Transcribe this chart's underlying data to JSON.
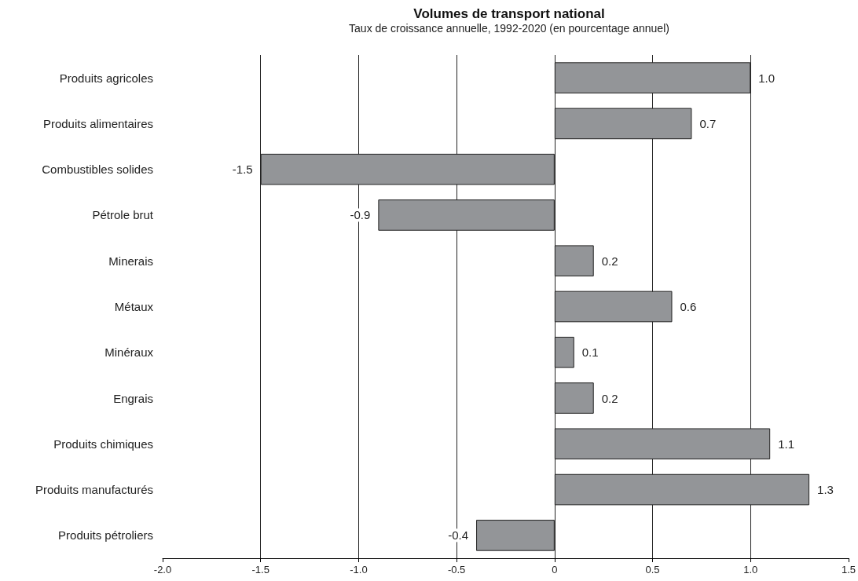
{
  "chart_data": {
    "type": "bar",
    "orientation": "horizontal",
    "title": "Volumes de transport national",
    "subtitle": "Taux de croissance annuelle, 1992-2020 (en pourcentage annuel)",
    "categories": [
      "Produits agricoles",
      "Produits alimentaires",
      "Combustibles solides",
      "Pétrole brut",
      "Minerais",
      "Métaux",
      "Minéraux",
      "Engrais",
      "Produits chimiques",
      "Produits manufacturés",
      "Produits pétroliers"
    ],
    "values": [
      1.0,
      0.7,
      -1.5,
      -0.9,
      0.2,
      0.6,
      0.1,
      0.2,
      1.1,
      1.3,
      -0.4
    ],
    "value_labels": [
      "1.0",
      "0.7",
      "-1.5",
      "-0.9",
      "0.2",
      "0.6",
      "0.1",
      "0.2",
      "1.1",
      "1.3",
      "-0.4"
    ],
    "color": "#939598",
    "grid": "x",
    "xlim": [
      -2,
      1.5
    ],
    "xticks": [
      {
        "value": -2,
        "label": "-2.0"
      },
      {
        "value": -1.5,
        "label": "-1.5"
      },
      {
        "value": -1,
        "label": "-1.0"
      },
      {
        "value": -0.5,
        "label": "-0.5"
      },
      0,
      {
        "value": 0.5,
        "label": "0.5"
      },
      {
        "value": 1,
        "label": "1.0"
      },
      {
        "value": 1.5,
        "label": "1.5"
      }
    ]
  }
}
